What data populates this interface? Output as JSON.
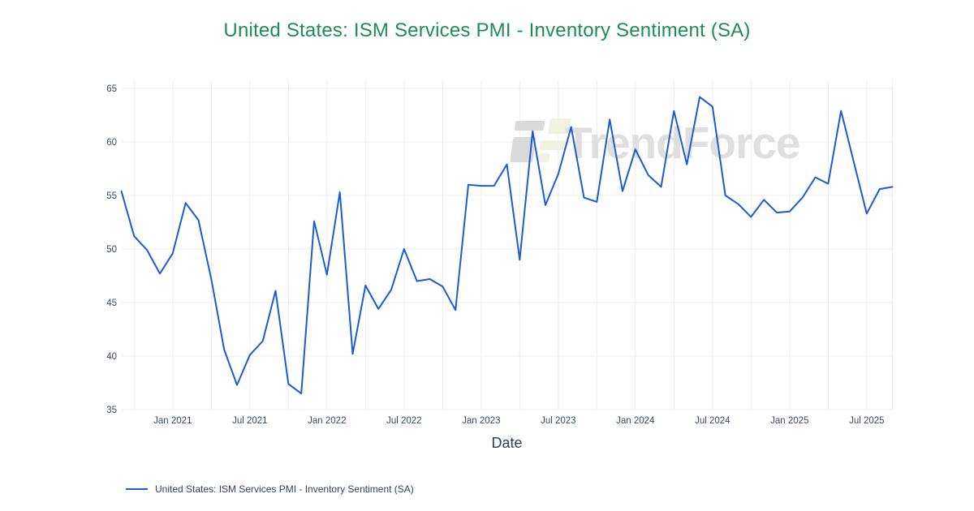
{
  "title": "United States: ISM Services PMI - Inventory Sentiment (SA)",
  "colors": {
    "title": "#1e8c5a",
    "line": "#1a5cd6",
    "tick_text": "#3d4a63",
    "axis_title_text": "#2f3e57",
    "gridline": "#ebedf0",
    "watermark_gray": "#dcdcdc",
    "watermark_logo_gray": "#d7d7d7",
    "watermark_logo_green": "#eef2dc",
    "background": "#ffffff"
  },
  "watermark": {
    "text": "TrendForce"
  },
  "legend": {
    "label": "United States: ISM Services PMI - Inventory Sentiment (SA)"
  },
  "chart_data": {
    "type": "line",
    "title": "United States: ISM Services PMI - Inventory Sentiment (SA)",
    "xlabel": "Date",
    "ylabel": "",
    "series_name": "United States: ISM Services PMI - Inventory Sentiment (SA)",
    "grid": true,
    "legend_position": "bottom-left",
    "ylim": [
      35,
      65
    ],
    "yticks": [
      35,
      40,
      45,
      50,
      55,
      60,
      65
    ],
    "xticks": [
      {
        "label": "Jan 2021",
        "i": 4
      },
      {
        "label": "Jul 2021",
        "i": 10
      },
      {
        "label": "Jan 2022",
        "i": 16
      },
      {
        "label": "Jul 2022",
        "i": 22
      },
      {
        "label": "Jan 2023",
        "i": 28
      },
      {
        "label": "Jul 2023",
        "i": 34
      },
      {
        "label": "Jan 2024",
        "i": 40
      },
      {
        "label": "Jul 2024",
        "i": 46
      },
      {
        "label": "Jan 2025",
        "i": 52
      },
      {
        "label": "Jul 2025",
        "i": 58
      }
    ],
    "x": [
      "2020-09",
      "2020-10",
      "2020-11",
      "2020-12",
      "2021-01",
      "2021-02",
      "2021-03",
      "2021-04",
      "2021-05",
      "2021-06",
      "2021-07",
      "2021-08",
      "2021-09",
      "2021-10",
      "2021-11",
      "2021-12",
      "2022-01",
      "2022-02",
      "2022-03",
      "2022-04",
      "2022-05",
      "2022-06",
      "2022-07",
      "2022-08",
      "2022-09",
      "2022-10",
      "2022-11",
      "2022-12",
      "2023-01",
      "2023-02",
      "2023-03",
      "2023-04",
      "2023-05",
      "2023-06",
      "2023-07",
      "2023-08",
      "2023-09",
      "2023-10",
      "2023-11",
      "2023-12",
      "2024-01",
      "2024-02",
      "2024-03",
      "2024-04",
      "2024-05",
      "2024-06",
      "2024-07",
      "2024-08",
      "2024-09",
      "2024-10",
      "2024-11",
      "2024-12",
      "2025-01",
      "2025-02",
      "2025-03",
      "2025-04",
      "2025-05",
      "2025-06",
      "2025-07",
      "2025-08",
      "2025-09"
    ],
    "values": [
      55.4,
      51.2,
      49.9,
      47.7,
      49.6,
      54.3,
      52.7,
      47.2,
      40.6,
      37.3,
      40.1,
      41.4,
      46.1,
      37.4,
      36.5,
      52.6,
      47.6,
      55.3,
      40.2,
      46.6,
      44.4,
      46.2,
      50.0,
      47.0,
      47.2,
      46.5,
      44.3,
      56.0,
      55.9,
      55.9,
      57.9,
      49.0,
      61.0,
      54.1,
      57.0,
      61.4,
      54.8,
      54.4,
      62.1,
      55.4,
      59.3,
      56.9,
      55.8,
      62.9,
      57.9,
      64.2,
      63.3,
      55.0,
      54.2,
      53.0,
      54.6,
      53.4,
      53.5,
      54.8,
      56.7,
      56.1,
      62.9,
      58.1,
      53.3,
      55.6,
      55.8
    ]
  }
}
